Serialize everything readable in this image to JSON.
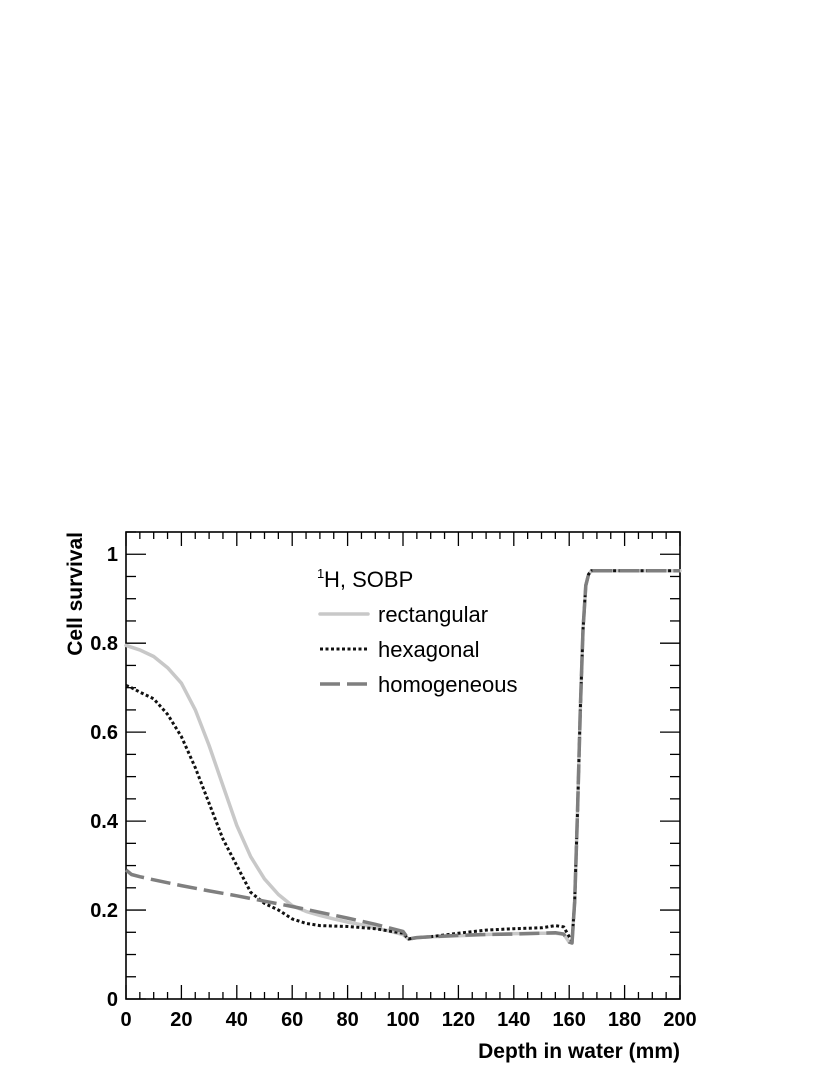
{
  "chart_data": {
    "type": "line",
    "title": "",
    "xlabel": "Depth in water (mm)",
    "ylabel": "Cell survival",
    "xlim": [
      0,
      200
    ],
    "ylim": [
      0,
      1.05
    ],
    "x_ticks": [
      "0",
      "20",
      "40",
      "60",
      "80",
      "100",
      "120",
      "140",
      "160",
      "180",
      "200"
    ],
    "y_ticks": [
      "0",
      "0.2",
      "0.4",
      "0.6",
      "0.8",
      "1"
    ],
    "grid": false,
    "legend": {
      "placement": "top-center",
      "header_sup": "1",
      "header_text": "H, SOBP"
    },
    "series": [
      {
        "name": "rectangular",
        "color": "#c8c8c8",
        "style": "solid",
        "x": [
          0,
          5,
          10,
          15,
          20,
          25,
          30,
          35,
          40,
          45,
          50,
          55,
          60,
          65,
          70,
          75,
          80,
          85,
          90,
          95,
          100,
          102,
          105,
          110,
          120,
          130,
          140,
          150,
          155,
          158,
          160,
          161,
          162,
          163,
          164,
          165,
          166,
          167,
          168,
          170,
          180,
          190,
          200
        ],
        "y": [
          0.795,
          0.785,
          0.77,
          0.745,
          0.71,
          0.65,
          0.57,
          0.48,
          0.39,
          0.32,
          0.27,
          0.235,
          0.21,
          0.197,
          0.188,
          0.18,
          0.173,
          0.167,
          0.16,
          0.153,
          0.145,
          0.135,
          0.138,
          0.14,
          0.142,
          0.145,
          0.147,
          0.148,
          0.148,
          0.146,
          0.128,
          0.126,
          0.22,
          0.42,
          0.65,
          0.83,
          0.93,
          0.955,
          0.963,
          0.963,
          0.963,
          0.963,
          0.963
        ]
      },
      {
        "name": "hexagonal",
        "color": "#111111",
        "style": "dotted",
        "x": [
          0,
          2,
          5,
          10,
          15,
          20,
          25,
          30,
          35,
          40,
          45,
          50,
          55,
          60,
          65,
          70,
          80,
          90,
          95,
          100,
          102,
          105,
          110,
          120,
          130,
          140,
          150,
          155,
          158,
          160,
          161,
          162,
          163,
          164,
          165,
          166,
          167,
          168,
          170,
          180,
          190,
          200
        ],
        "y": [
          0.705,
          0.7,
          0.69,
          0.675,
          0.64,
          0.59,
          0.52,
          0.44,
          0.36,
          0.3,
          0.24,
          0.215,
          0.2,
          0.18,
          0.17,
          0.165,
          0.163,
          0.158,
          0.153,
          0.148,
          0.135,
          0.138,
          0.14,
          0.148,
          0.155,
          0.158,
          0.16,
          0.165,
          0.162,
          0.14,
          0.13,
          0.22,
          0.42,
          0.65,
          0.83,
          0.93,
          0.955,
          0.963,
          0.963,
          0.963,
          0.963,
          0.963
        ]
      },
      {
        "name": "homogeneous",
        "color": "#7f7f7f",
        "style": "dashed",
        "x": [
          0,
          2,
          5,
          10,
          20,
          30,
          40,
          50,
          60,
          70,
          80,
          90,
          100,
          102,
          105,
          110,
          120,
          130,
          140,
          150,
          155,
          158,
          160,
          161,
          162,
          163,
          164,
          165,
          166,
          167,
          168,
          170,
          180,
          190,
          200
        ],
        "y": [
          0.29,
          0.28,
          0.275,
          0.268,
          0.255,
          0.243,
          0.232,
          0.22,
          0.208,
          0.195,
          0.182,
          0.168,
          0.152,
          0.135,
          0.138,
          0.14,
          0.143,
          0.145,
          0.146,
          0.148,
          0.149,
          0.146,
          0.128,
          0.126,
          0.22,
          0.42,
          0.65,
          0.83,
          0.93,
          0.955,
          0.963,
          0.963,
          0.963,
          0.963,
          0.963
        ]
      }
    ]
  }
}
